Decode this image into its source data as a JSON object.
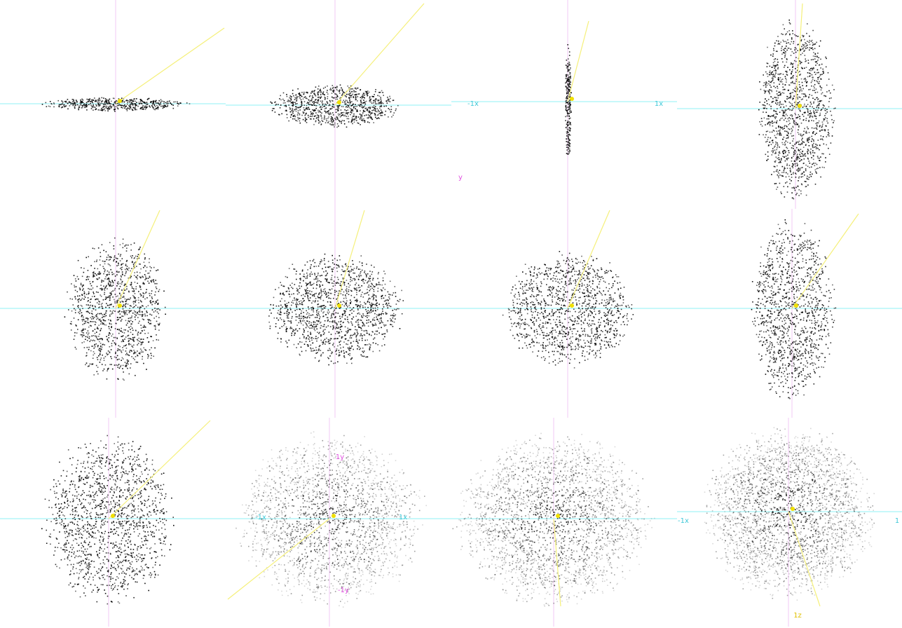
{
  "labels": [
    "-1x",
    "1x",
    "y",
    "-1x",
    "1x",
    "1y",
    "-1y",
    "-1x",
    "1",
    "1z"
  ]
}
